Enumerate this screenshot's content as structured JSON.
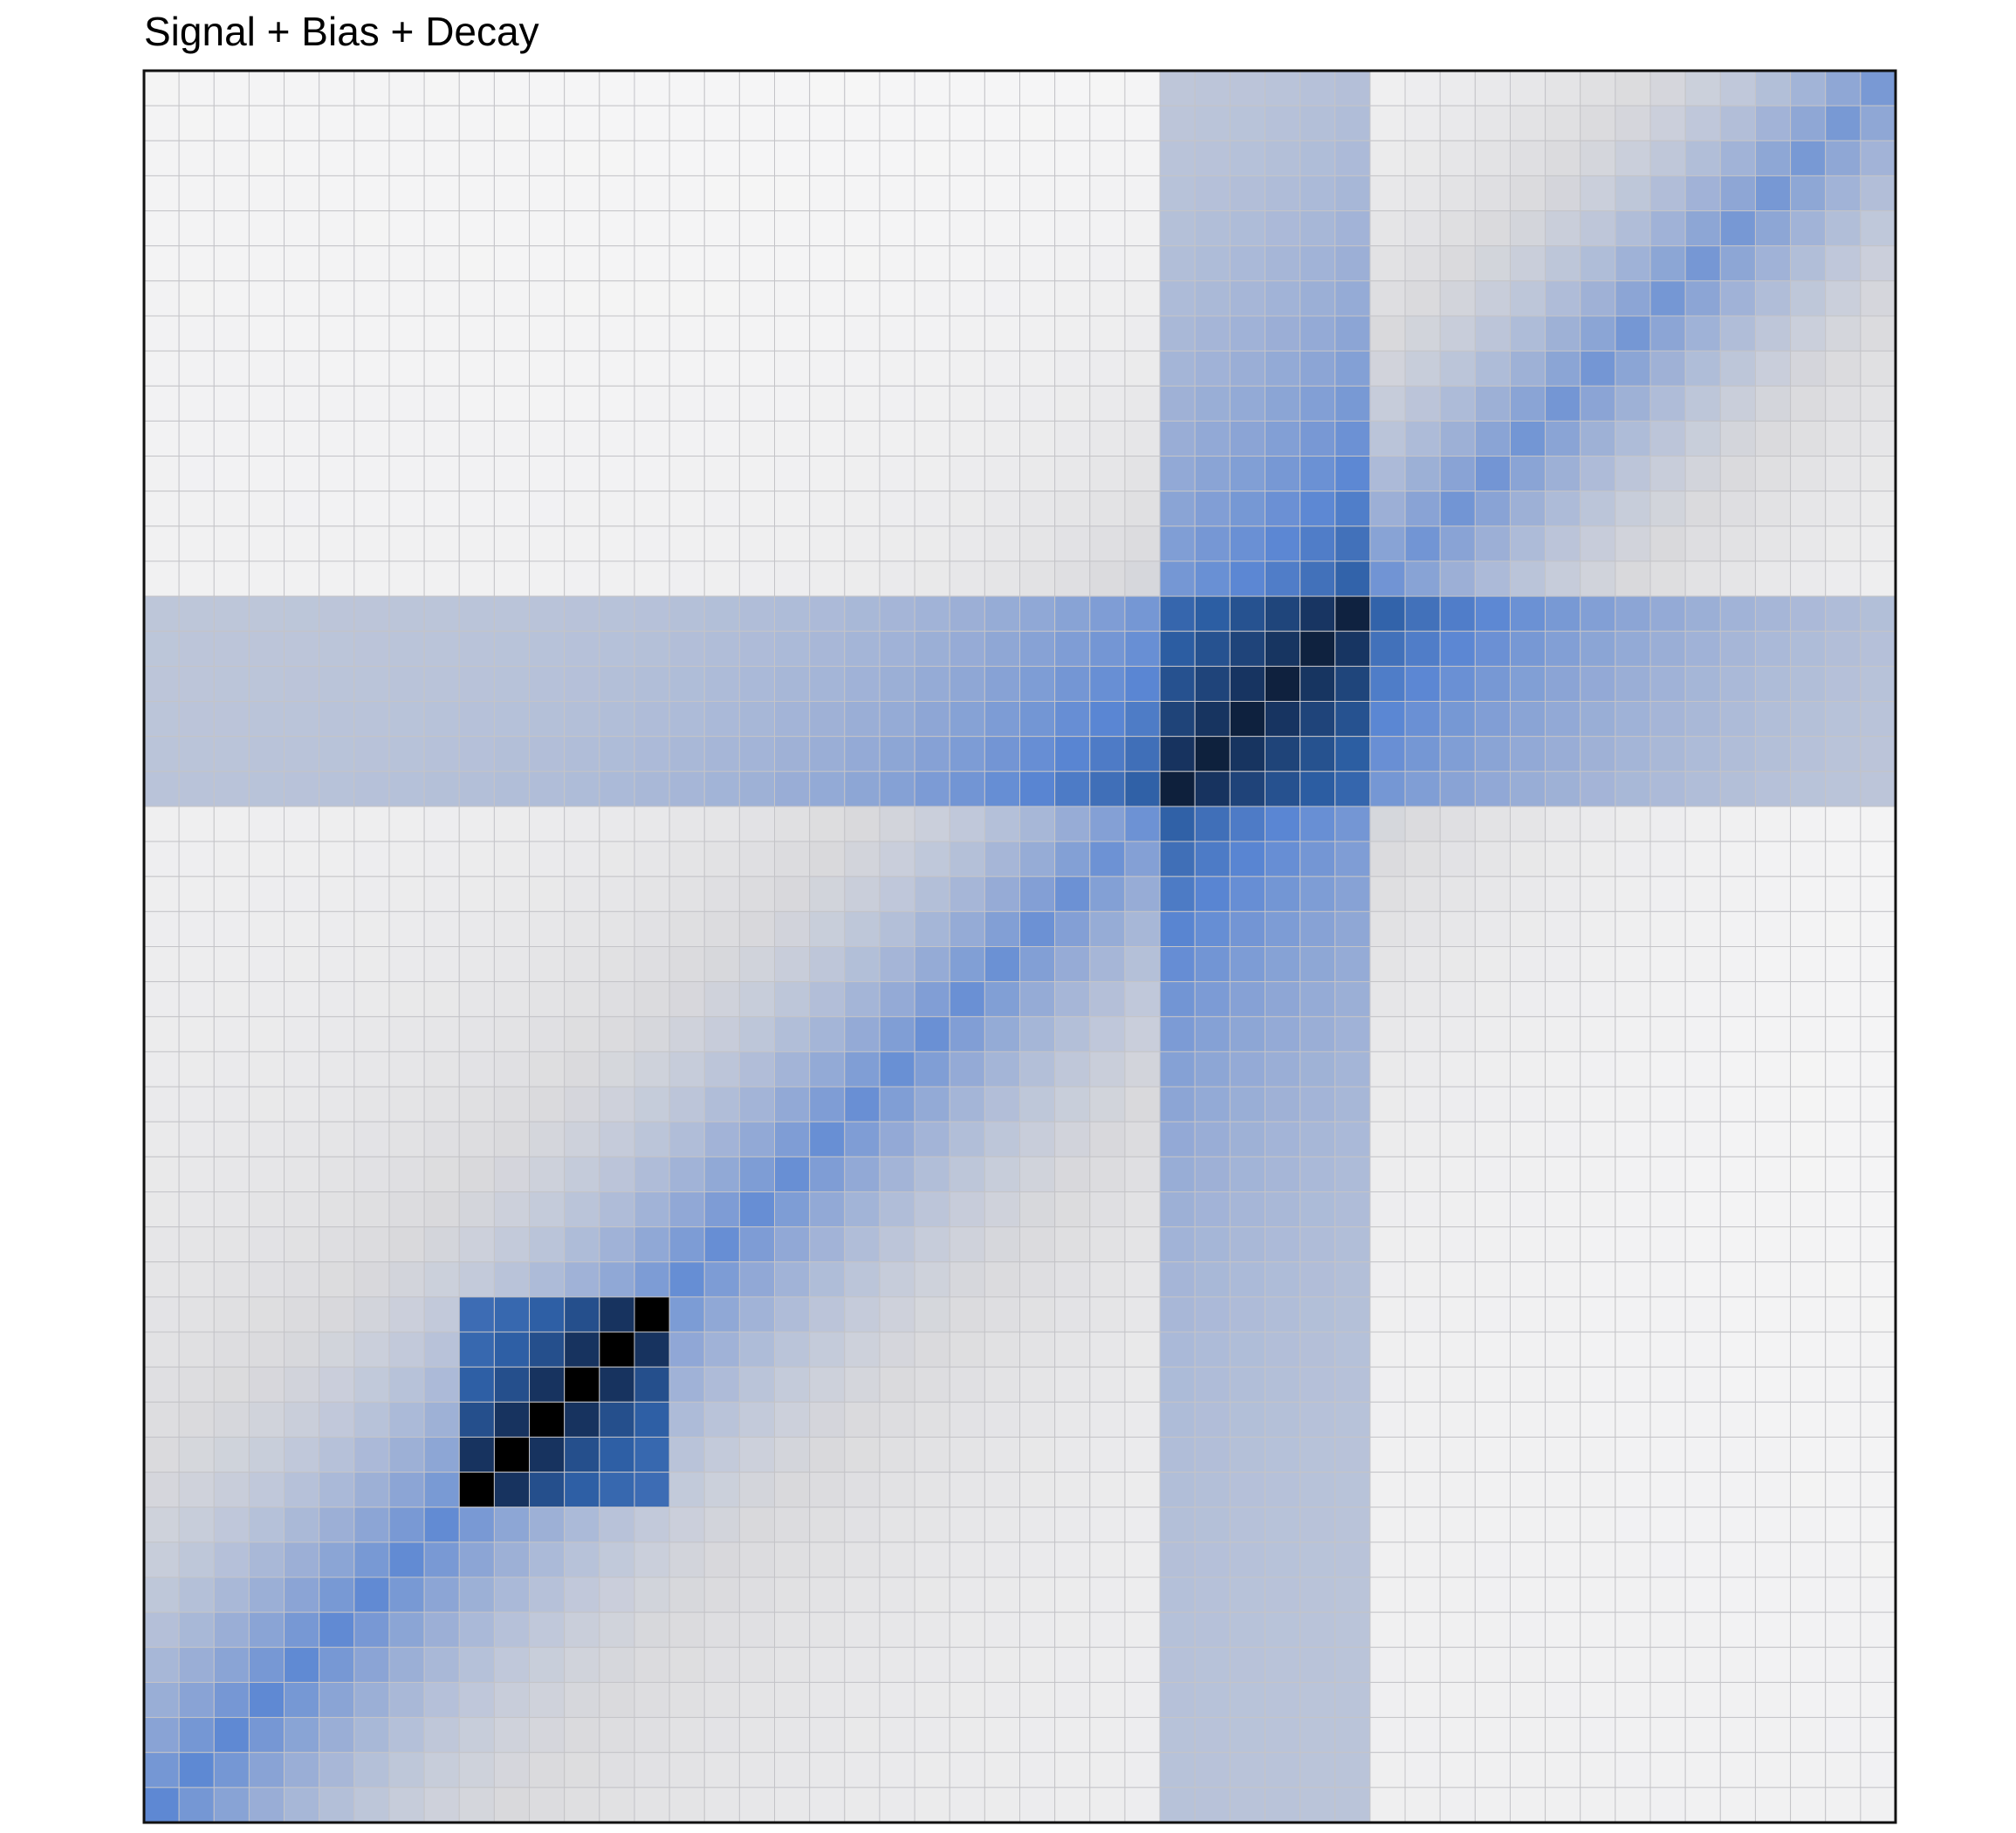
{
  "chart_data": {
    "type": "heatmap",
    "title": "Signal + Bias + Decay",
    "rows": 50,
    "cols": 50,
    "value_range": [
      0,
      1
    ],
    "grid": true,
    "legend": "none",
    "colormap": [
      "#ffffff",
      "#d9d9dc",
      "#9aaed6",
      "#5a86d3",
      "#2c5ea3",
      "#15305a",
      "#000000"
    ],
    "components": {
      "decay": {
        "description": "diagonal band with intensity decaying away from the anti-diagonal",
        "peak": 0.4,
        "falloff": 0.05,
        "diagonal_from": "bottom-left",
        "diagonal_to": "top-right"
      },
      "bias": {
        "row_band": {
          "rows": [
            15,
            20
          ],
          "level": 0.17
        },
        "col_band": {
          "cols": [
            29,
            34
          ],
          "level": 0.17
        },
        "row_gradient": 0.04,
        "col_gradient": 0.03
      },
      "signal": [
        {
          "row_range": [
            35,
            40
          ],
          "col_range": [
            9,
            14
          ],
          "peak": 1.0,
          "base": 0.58,
          "label": "lower block"
        },
        {
          "row_range": [
            15,
            20
          ],
          "col_range": [
            29,
            34
          ],
          "peak": 0.75,
          "base": 0.42,
          "label": "upper block"
        }
      ]
    }
  }
}
